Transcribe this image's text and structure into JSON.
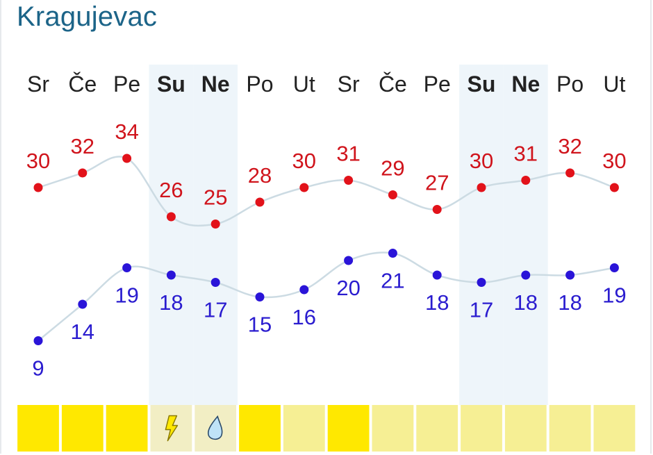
{
  "city": "Kragujevac",
  "chart_data": {
    "type": "line",
    "title": "",
    "categories": [
      "Sr",
      "Če",
      "Pe",
      "Su",
      "Ne",
      "Po",
      "Ut",
      "Sr",
      "Če",
      "Pe",
      "Su",
      "Ne",
      "Po",
      "Ut"
    ],
    "weekend_days": [
      3,
      4,
      10,
      11
    ],
    "series": [
      {
        "values": [
          30,
          32,
          34,
          26,
          25,
          28,
          30,
          31,
          29,
          27,
          30,
          31,
          32,
          30
        ],
        "color": "#e2121a"
      },
      {
        "values": [
          9,
          14,
          19,
          18,
          17,
          15,
          16,
          20,
          21,
          18,
          17,
          18,
          18,
          19
        ],
        "color": "#2a14d8"
      }
    ],
    "ylim": [
      5,
      38
    ],
    "line_color": "#ccdbe3",
    "weekend_band_color": "#eef5fa",
    "weather_strip": [
      {
        "condition": "sunny",
        "color": "#ffe800"
      },
      {
        "condition": "sunny",
        "color": "#ffe800"
      },
      {
        "condition": "sunny",
        "color": "#ffe800"
      },
      {
        "condition": "thunderstorm",
        "icon": "lightning-icon",
        "color": "#f2eec4"
      },
      {
        "condition": "rain",
        "icon": "raindrop-icon",
        "color": "#f2eec4"
      },
      {
        "condition": "sunny",
        "color": "#ffe800"
      },
      {
        "condition": "partly-sunny",
        "color": "#f6ef94"
      },
      {
        "condition": "sunny",
        "color": "#ffe800"
      },
      {
        "condition": "partly-sunny",
        "color": "#f6ef94"
      },
      {
        "condition": "partly-sunny",
        "color": "#f6ef94"
      },
      {
        "condition": "partly-sunny",
        "color": "#f6ef94"
      },
      {
        "condition": "partly-sunny",
        "color": "#f6ef94"
      },
      {
        "condition": "partly-sunny",
        "color": "#f6ef94"
      },
      {
        "condition": "partly-sunny",
        "color": "#f6ef94"
      }
    ]
  }
}
